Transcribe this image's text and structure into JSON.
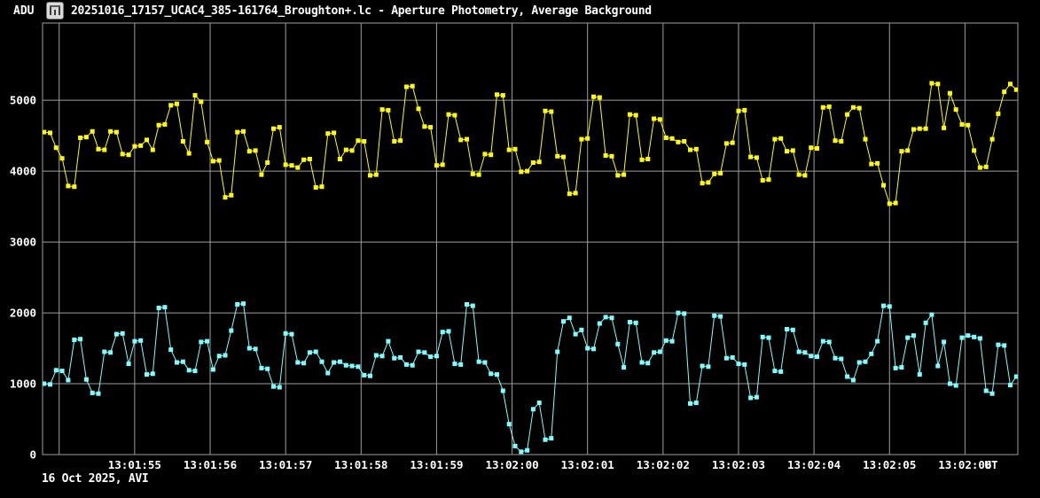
{
  "window": {
    "title": "20251016_17157_UCAC4_385-161764_Broughton+.lc - Aperture Photometry, Average Background",
    "icon": "lightcurve-icon"
  },
  "footer": {
    "text": "16 Oct 2025, AVI"
  },
  "colors": {
    "background": "#000000",
    "grid": "#9e9e9e",
    "text": "#ffffff",
    "series_yellow": "#ffff00",
    "series_cyan": "#80ffff"
  },
  "chart_data": {
    "type": "line",
    "title": "20251016_17157_UCAC4_385-161764_Broughton+.lc - Aperture Photometry, Average Background",
    "x_axis": {
      "label": "UT",
      "tick_labels": [
        "13:01:55",
        "13:01:56",
        "13:01:57",
        "13:01:58",
        "13:01:59",
        "13:02:00",
        "13:02:01",
        "13:02:02",
        "13:02:03",
        "13:02:04",
        "13:02:05",
        "13:02:06"
      ],
      "unlabeled_leading_gridline": "13:01:54",
      "range_seconds_rel_first_tick": [
        -1.22,
        11.7
      ],
      "grid": true
    },
    "y_axis": {
      "label": "ADU",
      "tick_values": [
        0,
        1000,
        2000,
        3000,
        4000,
        5000
      ],
      "grid_values": [
        1000,
        2000,
        3000,
        4000,
        5000
      ],
      "range": [
        0,
        6090
      ],
      "grid": true
    },
    "sampling": {
      "start_rel_seconds": -1.2,
      "interval_seconds": 0.08
    },
    "series": [
      {
        "name": "yellow aperture",
        "color": "#ffff00",
        "values": [
          4550,
          4540,
          4330,
          4180,
          3790,
          3780,
          4470,
          4480,
          4560,
          4310,
          4300,
          4560,
          4550,
          4240,
          4230,
          4350,
          4360,
          4440,
          4300,
          4650,
          4660,
          4930,
          4950,
          4420,
          4250,
          5070,
          4980,
          4410,
          4140,
          4150,
          3630,
          3660,
          4550,
          4560,
          4280,
          4290,
          3950,
          4120,
          4600,
          4620,
          4090,
          4080,
          4050,
          4160,
          4170,
          3770,
          3780,
          4530,
          4540,
          4170,
          4300,
          4290,
          4430,
          4420,
          3940,
          3950,
          4870,
          4860,
          4420,
          4430,
          5190,
          5200,
          4880,
          4630,
          4620,
          4080,
          4090,
          4800,
          4790,
          4440,
          4450,
          3960,
          3950,
          4240,
          4230,
          5080,
          5070,
          4300,
          4310,
          3990,
          4000,
          4120,
          4130,
          4850,
          4840,
          4210,
          4200,
          3680,
          3690,
          4450,
          4460,
          5050,
          5040,
          4220,
          4210,
          3940,
          3950,
          4800,
          4790,
          4160,
          4170,
          4740,
          4730,
          4470,
          4460,
          4410,
          4420,
          4300,
          4310,
          3830,
          3840,
          3960,
          3970,
          4390,
          4400,
          4850,
          4860,
          4200,
          4190,
          3870,
          3880,
          4450,
          4460,
          4280,
          4290,
          3950,
          3940,
          4330,
          4320,
          4900,
          4910,
          4430,
          4420,
          4800,
          4900,
          4890,
          4450,
          4100,
          4110,
          3800,
          3540,
          3550,
          4280,
          4290,
          4590,
          4600,
          4600,
          5240,
          5230,
          4610,
          5100,
          4870,
          4660,
          4650,
          4290,
          4050,
          4060,
          4450,
          4810,
          5120,
          5230,
          5150
        ]
      },
      {
        "name": "cyan aperture",
        "color": "#80ffff",
        "values": [
          1000,
          990,
          1190,
          1180,
          1050,
          1620,
          1630,
          1060,
          870,
          860,
          1450,
          1440,
          1700,
          1710,
          1280,
          1600,
          1610,
          1130,
          1140,
          2070,
          2080,
          1480,
          1300,
          1310,
          1190,
          1180,
          1590,
          1600,
          1200,
          1390,
          1400,
          1750,
          2120,
          2130,
          1500,
          1490,
          1220,
          1210,
          960,
          950,
          1710,
          1700,
          1300,
          1290,
          1440,
          1450,
          1310,
          1150,
          1300,
          1310,
          1260,
          1250,
          1240,
          1120,
          1110,
          1400,
          1390,
          1600,
          1360,
          1370,
          1270,
          1260,
          1450,
          1440,
          1380,
          1390,
          1730,
          1740,
          1280,
          1270,
          2120,
          2100,
          1310,
          1300,
          1140,
          1130,
          900,
          430,
          120,
          40,
          60,
          640,
          730,
          210,
          230,
          1450,
          1880,
          1930,
          1700,
          1760,
          1500,
          1490,
          1850,
          1940,
          1930,
          1560,
          1230,
          1870,
          1860,
          1300,
          1290,
          1440,
          1450,
          1610,
          1600,
          2000,
          1990,
          720,
          730,
          1250,
          1240,
          1960,
          1950,
          1360,
          1370,
          1280,
          1270,
          800,
          810,
          1660,
          1650,
          1180,
          1170,
          1770,
          1760,
          1450,
          1440,
          1390,
          1380,
          1600,
          1590,
          1360,
          1350,
          1100,
          1050,
          1300,
          1310,
          1420,
          1600,
          2100,
          2090,
          1220,
          1230,
          1650,
          1680,
          1130,
          1860,
          1975,
          1250,
          1590,
          1000,
          975,
          1650,
          1680,
          1660,
          1640,
          900,
          860,
          1550,
          1540,
          980,
          1100,
          1120
        ]
      }
    ]
  }
}
